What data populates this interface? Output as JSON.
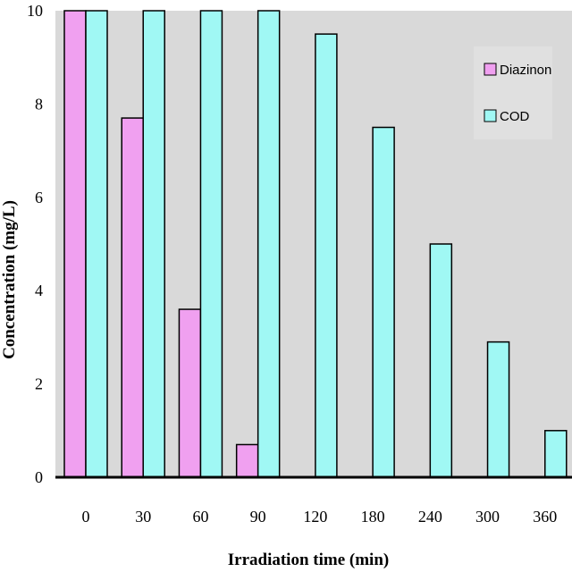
{
  "chart_data": {
    "type": "bar",
    "title": "",
    "xlabel": "Irradiation time (min)",
    "ylabel": "Concentration (mg/L)",
    "categories": [
      "0",
      "30",
      "60",
      "90",
      "120",
      "180",
      "240",
      "300",
      "360"
    ],
    "series": [
      {
        "name": "Diazinon",
        "color": "#f0a0f0",
        "values": [
          10,
          7.7,
          3.6,
          0.7,
          0,
          0,
          0,
          0,
          0
        ]
      },
      {
        "name": "COD",
        "color": "#a0f8f4",
        "values": [
          10,
          10,
          10,
          10,
          9.5,
          7.5,
          5,
          2.9,
          1
        ]
      }
    ],
    "yticks": [
      "0",
      "2",
      "4",
      "6",
      "8",
      "10"
    ],
    "ylim": [
      0,
      10
    ],
    "grid": false,
    "legend_position": "top-right",
    "plot_background": "#d9d9d9"
  }
}
